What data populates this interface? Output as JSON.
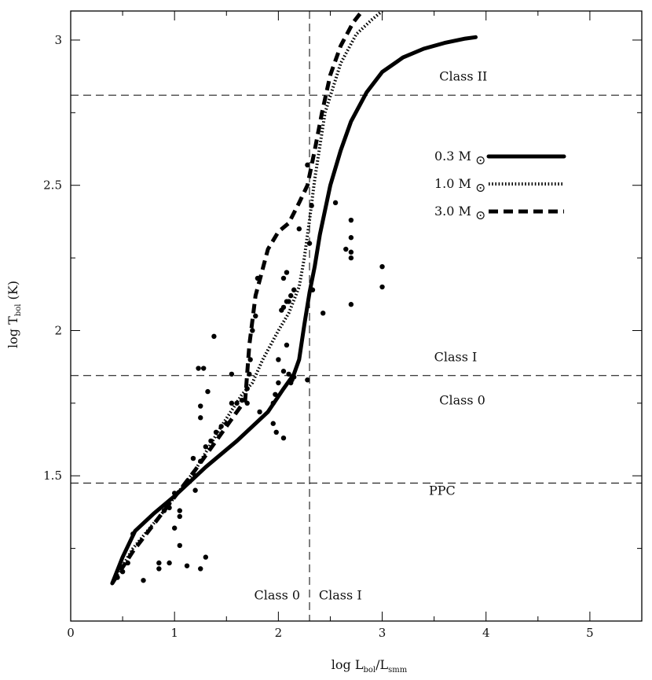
{
  "chart_data": {
    "type": "line",
    "title": "",
    "xlabel": {
      "main": "log L",
      "sub1": "bol",
      "mid": "/L",
      "sub2": "smm"
    },
    "ylabel": {
      "main": "log T",
      "sub": "bol",
      "unit": " (K)"
    },
    "xlim": [
      0,
      5.5
    ],
    "ylim": [
      1.0,
      3.1
    ],
    "xticks": [
      0,
      1,
      2,
      3,
      4,
      5
    ],
    "xtick_labels": [
      "0",
      "1",
      "2",
      "3",
      "4",
      "5"
    ],
    "yticks": [
      1.5,
      2,
      2.5,
      3
    ],
    "ytick_labels": [
      "1.5",
      "2",
      "2.5",
      "3"
    ],
    "grid": false,
    "reference_lines": [
      {
        "orientation": "horizontal",
        "value": 2.81
      },
      {
        "orientation": "horizontal",
        "value": 1.845
      },
      {
        "orientation": "horizontal",
        "value": 1.475
      },
      {
        "orientation": "vertical",
        "value": 2.3
      }
    ],
    "annotations": [
      {
        "text": "Class II",
        "x": 3.55,
        "y": 2.86
      },
      {
        "text": "Class I",
        "x": 3.5,
        "y": 1.895
      },
      {
        "text": "Class 0",
        "x": 3.55,
        "y": 1.745
      },
      {
        "text": "PPC",
        "x": 3.45,
        "y": 1.435
      },
      {
        "text": "Class 0",
        "x": 2.21,
        "y": 1.075,
        "anchor": "end"
      },
      {
        "text": "Class I",
        "x": 2.39,
        "y": 1.075,
        "anchor": "start"
      }
    ],
    "legend": {
      "position": "right",
      "entries": [
        {
          "label": "0.3 M",
          "sun": "⊙",
          "style": "solid"
        },
        {
          "label": "1.0 M",
          "sun": "⊙",
          "style": "dotted"
        },
        {
          "label": "3.0 M",
          "sun": "⊙",
          "style": "dashed"
        }
      ]
    },
    "series": [
      {
        "name": "0.3 Msun",
        "style": "solid",
        "x": [
          0.4,
          0.5,
          0.62,
          0.8,
          1.0,
          1.3,
          1.6,
          1.9,
          2.05,
          2.15,
          2.2,
          2.25,
          2.3,
          2.35,
          2.4,
          2.5,
          2.6,
          2.7,
          2.85,
          3.0,
          3.2,
          3.4,
          3.6,
          3.8,
          3.9
        ],
        "y": [
          1.13,
          1.22,
          1.31,
          1.37,
          1.43,
          1.53,
          1.62,
          1.72,
          1.8,
          1.85,
          1.9,
          2.02,
          2.13,
          2.22,
          2.33,
          2.5,
          2.62,
          2.72,
          2.82,
          2.89,
          2.94,
          2.97,
          2.99,
          3.005,
          3.01
        ]
      },
      {
        "name": "1.0 Msun",
        "style": "dotted",
        "x": [
          0.4,
          0.6,
          0.9,
          1.2,
          1.45,
          1.65,
          1.75,
          1.85,
          2.0,
          2.1,
          2.2,
          2.25,
          2.3,
          2.35,
          2.45,
          2.6,
          2.75,
          2.9,
          3.0
        ],
        "y": [
          1.13,
          1.25,
          1.38,
          1.52,
          1.67,
          1.78,
          1.82,
          1.9,
          2.0,
          2.06,
          2.15,
          2.25,
          2.38,
          2.52,
          2.75,
          2.92,
          3.02,
          3.07,
          3.1
        ]
      },
      {
        "name": "3.0 Msun",
        "style": "dashed",
        "x": [
          0.4,
          0.6,
          0.9,
          1.2,
          1.4,
          1.6,
          1.68,
          1.72,
          1.78,
          1.9,
          2.0,
          2.1,
          2.2,
          2.28,
          2.35,
          2.42,
          2.5,
          2.6,
          2.72,
          2.85
        ],
        "y": [
          1.13,
          1.24,
          1.38,
          1.52,
          1.62,
          1.72,
          1.76,
          1.95,
          2.12,
          2.28,
          2.34,
          2.37,
          2.44,
          2.5,
          2.62,
          2.75,
          2.88,
          2.98,
          3.06,
          3.12
        ]
      }
    ],
    "points": [
      [
        0.7,
        1.14
      ],
      [
        0.85,
        1.18
      ],
      [
        0.85,
        1.2
      ],
      [
        0.95,
        1.2
      ],
      [
        1.05,
        1.26
      ],
      [
        1.12,
        1.19
      ],
      [
        1.25,
        1.18
      ],
      [
        1.3,
        1.22
      ],
      [
        1.0,
        1.32
      ],
      [
        1.05,
        1.36
      ],
      [
        1.05,
        1.38
      ],
      [
        0.9,
        1.38
      ],
      [
        0.95,
        1.39
      ],
      [
        0.6,
        1.3
      ],
      [
        0.55,
        1.2
      ],
      [
        0.5,
        1.17
      ],
      [
        0.45,
        1.15
      ],
      [
        1.0,
        1.44
      ],
      [
        1.2,
        1.45
      ],
      [
        1.18,
        1.56
      ],
      [
        1.2,
        1.5
      ],
      [
        1.25,
        1.55
      ],
      [
        1.3,
        1.6
      ],
      [
        1.35,
        1.62
      ],
      [
        1.4,
        1.65
      ],
      [
        1.45,
        1.67
      ],
      [
        1.5,
        1.68
      ],
      [
        1.55,
        1.75
      ],
      [
        1.6,
        1.75
      ],
      [
        1.65,
        1.76
      ],
      [
        1.7,
        1.75
      ],
      [
        1.25,
        1.74
      ],
      [
        1.25,
        1.7
      ],
      [
        1.32,
        1.79
      ],
      [
        1.23,
        1.87
      ],
      [
        1.28,
        1.87
      ],
      [
        1.55,
        1.85
      ],
      [
        1.38,
        1.98
      ],
      [
        1.7,
        1.8
      ],
      [
        1.72,
        1.85
      ],
      [
        1.73,
        1.9
      ],
      [
        1.75,
        2.0
      ],
      [
        1.78,
        2.05
      ],
      [
        1.8,
        2.18
      ],
      [
        1.95,
        1.68
      ],
      [
        1.98,
        1.65
      ],
      [
        2.05,
        1.63
      ],
      [
        1.95,
        1.75
      ],
      [
        1.97,
        1.78
      ],
      [
        2.0,
        1.82
      ],
      [
        2.0,
        1.9
      ],
      [
        2.05,
        1.86
      ],
      [
        2.1,
        1.85
      ],
      [
        2.12,
        1.82
      ],
      [
        2.13,
        1.83
      ],
      [
        2.15,
        1.84
      ],
      [
        2.08,
        1.95
      ],
      [
        2.03,
        2.07
      ],
      [
        2.05,
        2.08
      ],
      [
        2.08,
        2.1
      ],
      [
        2.12,
        2.12
      ],
      [
        2.15,
        2.14
      ],
      [
        2.05,
        2.18
      ],
      [
        2.08,
        2.2
      ],
      [
        2.1,
        2.1
      ],
      [
        2.2,
        2.35
      ],
      [
        2.3,
        2.3
      ],
      [
        2.28,
        2.57
      ],
      [
        2.32,
        2.43
      ],
      [
        2.43,
        2.06
      ],
      [
        2.55,
        2.44
      ],
      [
        2.65,
        2.28
      ],
      [
        2.7,
        2.25
      ],
      [
        2.7,
        2.27
      ],
      [
        2.7,
        2.32
      ],
      [
        2.7,
        2.38
      ],
      [
        2.7,
        2.09
      ],
      [
        3.0,
        2.22
      ],
      [
        3.0,
        2.15
      ],
      [
        2.28,
        1.83
      ],
      [
        2.33,
        2.14
      ],
      [
        1.82,
        1.72
      ]
    ]
  }
}
